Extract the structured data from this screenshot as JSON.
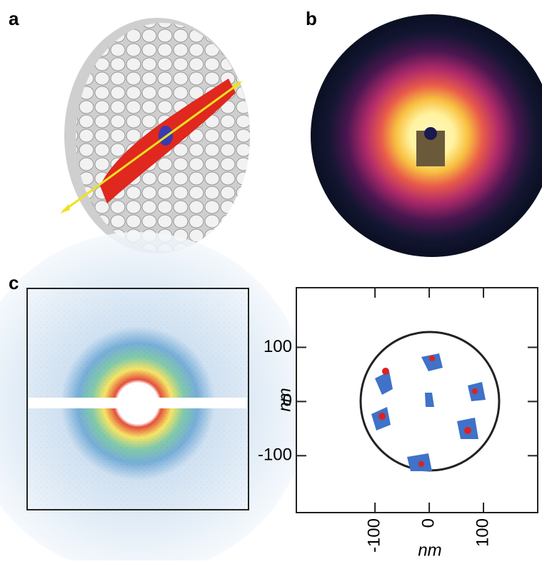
{
  "panel_labels": [
    "a",
    "b",
    "c"
  ],
  "plot": {
    "xlabel": "nm",
    "ylabel": "nm",
    "xlim": [
      -245,
      200
    ],
    "ylim": [
      -205,
      210
    ],
    "xticks": [
      -100,
      0,
      100
    ],
    "yticks": [
      -100,
      0,
      100
    ]
  }
}
